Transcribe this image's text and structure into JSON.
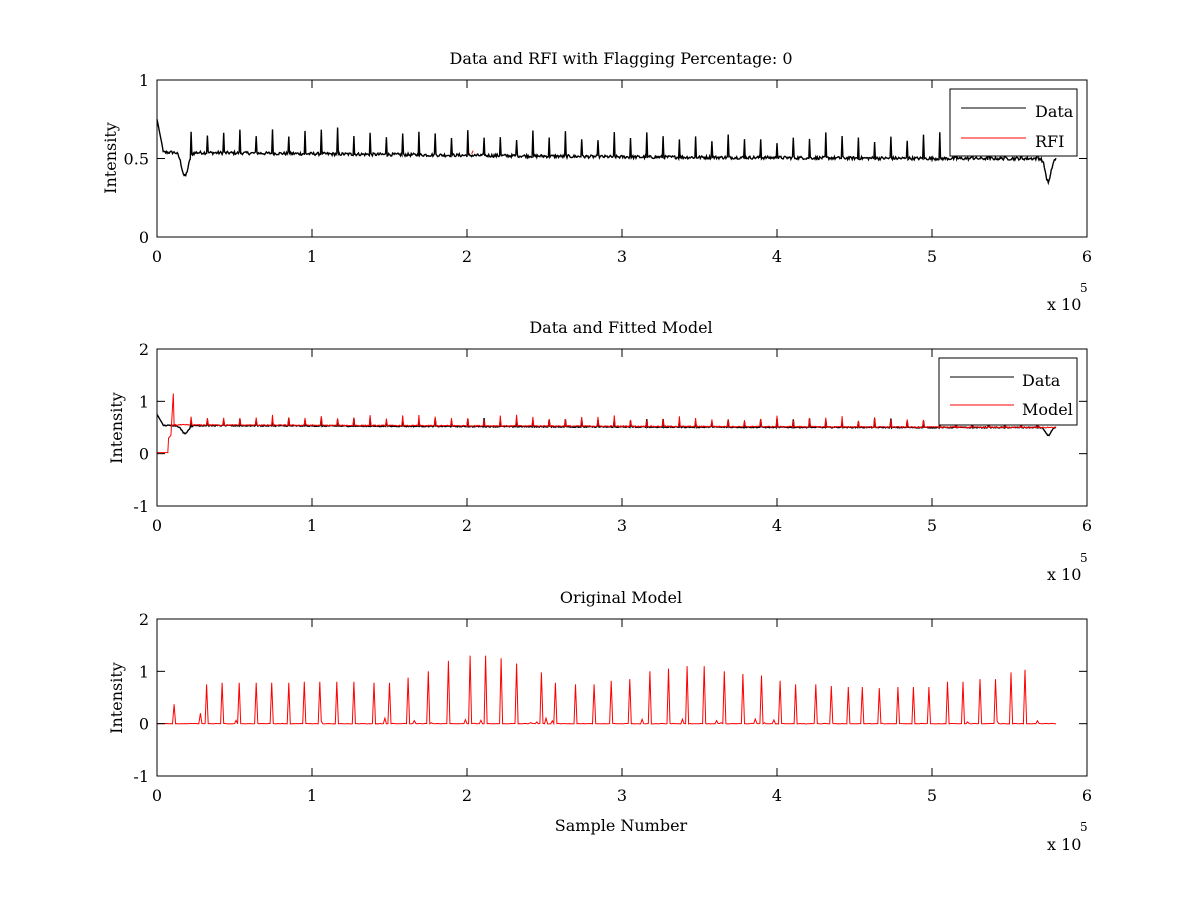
{
  "chart_data": [
    {
      "type": "line",
      "title": "Data and RFI with Flagging Percentage: 0",
      "xlabel": "",
      "ylabel": "Intensity",
      "xlim": [
        0,
        600000
      ],
      "ylim": [
        0,
        1
      ],
      "x_ticks": [
        "0",
        "1",
        "2",
        "3",
        "4",
        "5",
        "6"
      ],
      "y_ticks": [
        "0",
        "0.5",
        "1"
      ],
      "x_multiplier": "x 10",
      "x_exponent": "5",
      "legend_position": "top-right",
      "grid": false,
      "series": [
        {
          "name": "Data",
          "color": "#000000",
          "baseline": [
            [
              0,
              0.54
            ],
            [
              100000,
              0.53
            ],
            [
              200000,
              0.52
            ],
            [
              300000,
              0.51
            ],
            [
              400000,
              0.505
            ],
            [
              500000,
              0.5
            ],
            [
              580000,
              0.5
            ]
          ],
          "spike_height": 0.12
        },
        {
          "name": "RFI",
          "color": "#ff0000",
          "points": [
            [
              203000,
              0.53
            ],
            [
              204000,
              0.55
            ]
          ]
        }
      ]
    },
    {
      "type": "line",
      "title": "Data and Fitted Model",
      "xlabel": "",
      "ylabel": "Intensity",
      "xlim": [
        0,
        600000
      ],
      "ylim": [
        -1,
        2
      ],
      "x_ticks": [
        "0",
        "1",
        "2",
        "3",
        "4",
        "5",
        "6"
      ],
      "y_ticks": [
        "-1",
        "0",
        "1",
        "2"
      ],
      "x_multiplier": "x 10",
      "x_exponent": "5",
      "legend_position": "top-right",
      "grid": false,
      "series": [
        {
          "name": "Data",
          "color": "#000000",
          "baseline": [
            [
              0,
              0.54
            ],
            [
              100000,
              0.53
            ],
            [
              200000,
              0.52
            ],
            [
              300000,
              0.51
            ],
            [
              400000,
              0.505
            ],
            [
              500000,
              0.5
            ],
            [
              580000,
              0.5
            ]
          ],
          "spike_height": 0.12
        },
        {
          "name": "Model",
          "color": "#ff0000",
          "baseline": [
            [
              10000,
              0.55
            ],
            [
              580000,
              0.5
            ]
          ],
          "spike_height": 0.15
        }
      ]
    },
    {
      "type": "line",
      "title": "Original Model",
      "xlabel": "Sample Number",
      "ylabel": "Intensity",
      "xlim": [
        0,
        600000
      ],
      "ylim": [
        -1,
        2
      ],
      "x_ticks": [
        "0",
        "1",
        "2",
        "3",
        "4",
        "5",
        "6"
      ],
      "y_ticks": [
        "-1",
        "0",
        "1",
        "2"
      ],
      "x_multiplier": "x 10",
      "x_exponent": "5",
      "legend_position": "none",
      "grid": false,
      "series": [
        {
          "color": "#ff0000",
          "baseline": [
            [
              0,
              0.0
            ],
            [
              580000,
              0.0
            ]
          ],
          "spikes": [
            [
              11000,
              0.37
            ],
            [
              28000,
              0.2
            ],
            [
              32000,
              0.75
            ],
            [
              42000,
              0.78
            ],
            [
              53000,
              0.78
            ],
            [
              64000,
              0.78
            ],
            [
              74000,
              0.78
            ],
            [
              85000,
              0.78
            ],
            [
              95000,
              0.8
            ],
            [
              105000,
              0.8
            ],
            [
              116000,
              0.8
            ],
            [
              127000,
              0.8
            ],
            [
              140000,
              0.78
            ],
            [
              150000,
              0.78
            ],
            [
              162000,
              0.88
            ],
            [
              175000,
              1.0
            ],
            [
              188000,
              1.2
            ],
            [
              202000,
              1.3
            ],
            [
              212000,
              1.3
            ],
            [
              222000,
              1.25
            ],
            [
              232000,
              1.15
            ],
            [
              248000,
              0.98
            ],
            [
              257000,
              0.78
            ],
            [
              270000,
              0.75
            ],
            [
              282000,
              0.75
            ],
            [
              293000,
              0.82
            ],
            [
              305000,
              0.85
            ],
            [
              318000,
              1.0
            ],
            [
              330000,
              1.05
            ],
            [
              342000,
              1.1
            ],
            [
              353000,
              1.1
            ],
            [
              366000,
              1.0
            ],
            [
              378000,
              0.95
            ],
            [
              390000,
              0.92
            ],
            [
              402000,
              0.82
            ],
            [
              412000,
              0.75
            ],
            [
              425000,
              0.75
            ],
            [
              435000,
              0.72
            ],
            [
              446000,
              0.7
            ],
            [
              455000,
              0.7
            ],
            [
              466000,
              0.68
            ],
            [
              478000,
              0.7
            ],
            [
              488000,
              0.7
            ],
            [
              498000,
              0.7
            ],
            [
              510000,
              0.8
            ],
            [
              520000,
              0.8
            ],
            [
              531000,
              0.85
            ],
            [
              541000,
              0.85
            ],
            [
              551000,
              0.98
            ],
            [
              560000,
              1.03
            ]
          ]
        }
      ]
    }
  ]
}
